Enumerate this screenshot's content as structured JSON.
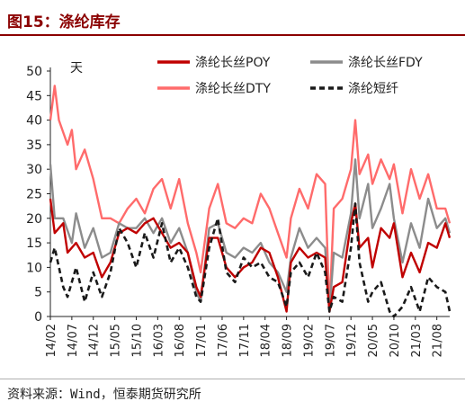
{
  "figure": {
    "title": "图15：涤纶库存",
    "source": "资料来源：Wind，恒泰期货研究所"
  },
  "chart_data": {
    "type": "line",
    "unit_label": "天",
    "ylim": [
      0,
      50
    ],
    "yticks": [
      0,
      5,
      10,
      15,
      20,
      25,
      30,
      35,
      40,
      45,
      50
    ],
    "xlim": [
      "2014-02",
      "2021-11"
    ],
    "xtick_labels": [
      "14/02",
      "14/07",
      "14/12",
      "15/05",
      "15/10",
      "16/03",
      "16/08",
      "17/01",
      "17/06",
      "17/11",
      "18/04",
      "18/09",
      "19/02",
      "19/07",
      "19/12",
      "20/05",
      "20/10",
      "21/03",
      "21/08"
    ],
    "grid": false,
    "legend_position": "top",
    "series": [
      {
        "name": "涤纶长丝POY",
        "color": "#c00000",
        "dash": "solid",
        "points": [
          [
            "2014-02",
            24
          ],
          [
            "2014-03",
            17
          ],
          [
            "2014-05",
            19
          ],
          [
            "2014-06",
            13
          ],
          [
            "2014-08",
            15
          ],
          [
            "2014-10",
            12
          ],
          [
            "2014-12",
            13
          ],
          [
            "2015-02",
            8
          ],
          [
            "2015-04",
            11
          ],
          [
            "2015-06",
            17
          ],
          [
            "2015-08",
            18
          ],
          [
            "2015-10",
            17
          ],
          [
            "2015-12",
            19
          ],
          [
            "2016-02",
            20
          ],
          [
            "2016-04",
            17
          ],
          [
            "2016-06",
            14
          ],
          [
            "2016-08",
            15
          ],
          [
            "2016-10",
            13
          ],
          [
            "2016-12",
            6
          ],
          [
            "2017-01",
            4
          ],
          [
            "2017-03",
            16
          ],
          [
            "2017-05",
            16
          ],
          [
            "2017-07",
            10
          ],
          [
            "2017-09",
            8
          ],
          [
            "2017-11",
            10
          ],
          [
            "2018-01",
            11
          ],
          [
            "2018-03",
            14
          ],
          [
            "2018-05",
            13
          ],
          [
            "2018-07",
            8
          ],
          [
            "2018-09",
            1
          ],
          [
            "2018-10",
            11
          ],
          [
            "2018-12",
            14
          ],
          [
            "2019-02",
            12
          ],
          [
            "2019-04",
            13
          ],
          [
            "2019-06",
            12
          ],
          [
            "2019-07",
            1
          ],
          [
            "2019-08",
            6
          ],
          [
            "2019-10",
            7
          ],
          [
            "2019-12",
            19
          ],
          [
            "2020-01",
            23
          ],
          [
            "2020-02",
            14
          ],
          [
            "2020-04",
            16
          ],
          [
            "2020-05",
            10
          ],
          [
            "2020-07",
            18
          ],
          [
            "2020-09",
            16
          ],
          [
            "2020-10",
            19
          ],
          [
            "2020-12",
            8
          ],
          [
            "2021-02",
            13
          ],
          [
            "2021-04",
            9
          ],
          [
            "2021-06",
            15
          ],
          [
            "2021-08",
            14
          ],
          [
            "2021-10",
            19
          ],
          [
            "2021-11",
            16
          ]
        ]
      },
      {
        "name": "涤纶长丝FDY",
        "color": "#8c8c8c",
        "dash": "solid",
        "points": [
          [
            "2014-02",
            31
          ],
          [
            "2014-03",
            20
          ],
          [
            "2014-05",
            20
          ],
          [
            "2014-07",
            15
          ],
          [
            "2014-08",
            21
          ],
          [
            "2014-10",
            14
          ],
          [
            "2014-12",
            18
          ],
          [
            "2015-02",
            12
          ],
          [
            "2015-04",
            13
          ],
          [
            "2015-06",
            19
          ],
          [
            "2015-08",
            18
          ],
          [
            "2015-10",
            18
          ],
          [
            "2015-12",
            20
          ],
          [
            "2016-02",
            17
          ],
          [
            "2016-04",
            20
          ],
          [
            "2016-06",
            15
          ],
          [
            "2016-08",
            18
          ],
          [
            "2016-10",
            13
          ],
          [
            "2016-12",
            5
          ],
          [
            "2017-01",
            3
          ],
          [
            "2017-03",
            18
          ],
          [
            "2017-05",
            19
          ],
          [
            "2017-07",
            13
          ],
          [
            "2017-09",
            12
          ],
          [
            "2017-11",
            14
          ],
          [
            "2018-01",
            13
          ],
          [
            "2018-03",
            15
          ],
          [
            "2018-05",
            11
          ],
          [
            "2018-07",
            9
          ],
          [
            "2018-09",
            5
          ],
          [
            "2018-10",
            12
          ],
          [
            "2018-12",
            18
          ],
          [
            "2019-02",
            14
          ],
          [
            "2019-04",
            16
          ],
          [
            "2019-06",
            14
          ],
          [
            "2019-07",
            1
          ],
          [
            "2019-08",
            13
          ],
          [
            "2019-10",
            12
          ],
          [
            "2019-12",
            21
          ],
          [
            "2020-01",
            32
          ],
          [
            "2020-02",
            20
          ],
          [
            "2020-04",
            27
          ],
          [
            "2020-05",
            18
          ],
          [
            "2020-07",
            22
          ],
          [
            "2020-09",
            27
          ],
          [
            "2020-10",
            20
          ],
          [
            "2020-12",
            11
          ],
          [
            "2021-02",
            19
          ],
          [
            "2021-04",
            14
          ],
          [
            "2021-06",
            24
          ],
          [
            "2021-08",
            18
          ],
          [
            "2021-10",
            20
          ],
          [
            "2021-11",
            17
          ]
        ]
      },
      {
        "name": "涤纶长丝DTY",
        "color": "#ff6b6b",
        "dash": "solid",
        "points": [
          [
            "2014-02",
            40
          ],
          [
            "2014-03",
            47
          ],
          [
            "2014-04",
            40
          ],
          [
            "2014-06",
            35
          ],
          [
            "2014-07",
            38
          ],
          [
            "2014-08",
            30
          ],
          [
            "2014-10",
            34
          ],
          [
            "2014-12",
            28
          ],
          [
            "2015-02",
            20
          ],
          [
            "2015-04",
            20
          ],
          [
            "2015-06",
            19
          ],
          [
            "2015-08",
            22
          ],
          [
            "2015-10",
            24
          ],
          [
            "2015-12",
            21
          ],
          [
            "2016-02",
            26
          ],
          [
            "2016-04",
            28
          ],
          [
            "2016-06",
            22
          ],
          [
            "2016-08",
            28
          ],
          [
            "2016-10",
            19
          ],
          [
            "2016-12",
            13
          ],
          [
            "2017-01",
            9
          ],
          [
            "2017-03",
            22
          ],
          [
            "2017-05",
            27
          ],
          [
            "2017-07",
            19
          ],
          [
            "2017-09",
            18
          ],
          [
            "2017-11",
            20
          ],
          [
            "2018-01",
            19
          ],
          [
            "2018-03",
            25
          ],
          [
            "2018-05",
            22
          ],
          [
            "2018-07",
            17
          ],
          [
            "2018-09",
            12
          ],
          [
            "2018-10",
            20
          ],
          [
            "2018-12",
            26
          ],
          [
            "2019-02",
            22
          ],
          [
            "2019-04",
            29
          ],
          [
            "2019-06",
            27
          ],
          [
            "2019-07",
            1
          ],
          [
            "2019-08",
            22
          ],
          [
            "2019-10",
            24
          ],
          [
            "2019-12",
            30
          ],
          [
            "2020-01",
            40
          ],
          [
            "2020-02",
            29
          ],
          [
            "2020-04",
            33
          ],
          [
            "2020-05",
            27
          ],
          [
            "2020-07",
            32
          ],
          [
            "2020-09",
            28
          ],
          [
            "2020-10",
            31
          ],
          [
            "2020-12",
            21
          ],
          [
            "2021-02",
            30
          ],
          [
            "2021-04",
            24
          ],
          [
            "2021-06",
            29
          ],
          [
            "2021-08",
            22
          ],
          [
            "2021-10",
            22
          ],
          [
            "2021-11",
            19
          ]
        ]
      },
      {
        "name": "涤纶短纤",
        "color": "#1a1a1a",
        "dash": "dashed",
        "points": [
          [
            "2014-02",
            11
          ],
          [
            "2014-03",
            14
          ],
          [
            "2014-05",
            6
          ],
          [
            "2014-06",
            4
          ],
          [
            "2014-08",
            10
          ],
          [
            "2014-10",
            3
          ],
          [
            "2014-12",
            9
          ],
          [
            "2015-02",
            4
          ],
          [
            "2015-04",
            9
          ],
          [
            "2015-06",
            18
          ],
          [
            "2015-08",
            15
          ],
          [
            "2015-10",
            10
          ],
          [
            "2015-12",
            17
          ],
          [
            "2016-02",
            12
          ],
          [
            "2016-04",
            19
          ],
          [
            "2016-06",
            11
          ],
          [
            "2016-08",
            14
          ],
          [
            "2016-10",
            10
          ],
          [
            "2016-12",
            4
          ],
          [
            "2017-01",
            3
          ],
          [
            "2017-03",
            14
          ],
          [
            "2017-05",
            20
          ],
          [
            "2017-07",
            9
          ],
          [
            "2017-09",
            7
          ],
          [
            "2017-11",
            12
          ],
          [
            "2018-01",
            10
          ],
          [
            "2018-03",
            11
          ],
          [
            "2018-05",
            8
          ],
          [
            "2018-07",
            7
          ],
          [
            "2018-09",
            2
          ],
          [
            "2018-10",
            9
          ],
          [
            "2018-12",
            11
          ],
          [
            "2019-02",
            8
          ],
          [
            "2019-04",
            13
          ],
          [
            "2019-06",
            9
          ],
          [
            "2019-07",
            1
          ],
          [
            "2019-08",
            4
          ],
          [
            "2019-10",
            3
          ],
          [
            "2019-12",
            14
          ],
          [
            "2020-01",
            23
          ],
          [
            "2020-02",
            11
          ],
          [
            "2020-04",
            3
          ],
          [
            "2020-05",
            5
          ],
          [
            "2020-07",
            7
          ],
          [
            "2020-09",
            1
          ],
          [
            "2020-10",
            0
          ],
          [
            "2020-12",
            2
          ],
          [
            "2021-02",
            6
          ],
          [
            "2021-04",
            1
          ],
          [
            "2021-06",
            8
          ],
          [
            "2021-08",
            6
          ],
          [
            "2021-10",
            5
          ],
          [
            "2021-11",
            1
          ]
        ]
      }
    ]
  }
}
